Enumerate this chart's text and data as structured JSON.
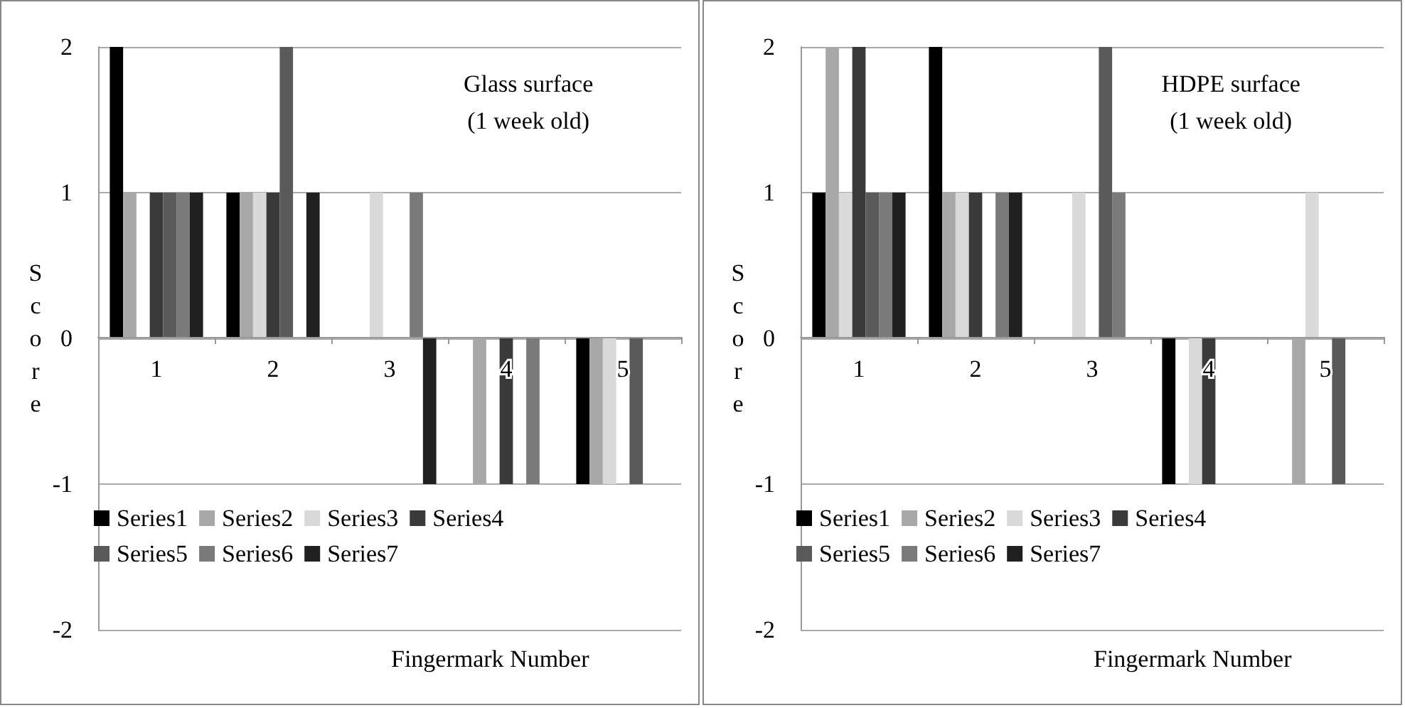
{
  "chart_data": [
    {
      "type": "bar",
      "title": "Glass surface\n(1 week old)",
      "xlabel": "Fingermark Number",
      "ylabel": "Score",
      "categories": [
        "1",
        "2",
        "3",
        "4",
        "5"
      ],
      "series": [
        {
          "name": "Series1",
          "color": "#000000",
          "values": [
            2,
            1,
            0,
            0,
            -1
          ]
        },
        {
          "name": "Series2",
          "color": "#a8a8a8",
          "values": [
            1,
            1,
            0,
            -1,
            -1
          ]
        },
        {
          "name": "Series3",
          "color": "#d9d9d9",
          "values": [
            0,
            1,
            1,
            0,
            -1
          ]
        },
        {
          "name": "Series4",
          "color": "#3a3a3a",
          "values": [
            1,
            1,
            0,
            -1,
            0
          ]
        },
        {
          "name": "Series5",
          "color": "#5a5a5a",
          "values": [
            1,
            2,
            0,
            0,
            -1
          ]
        },
        {
          "name": "Series6",
          "color": "#7a7a7a",
          "values": [
            1,
            0,
            1,
            -1,
            0
          ]
        },
        {
          "name": "Series7",
          "color": "#202020",
          "values": [
            1,
            1,
            -1,
            0,
            0
          ]
        }
      ],
      "ylim": [
        -2,
        2
      ],
      "yticks": [
        -2,
        -1,
        0,
        1,
        2
      ],
      "grid": "y",
      "legend": "bottom"
    },
    {
      "type": "bar",
      "title": "HDPE surface\n(1 week old)",
      "xlabel": "Fingermark Number",
      "ylabel": "Score",
      "categories": [
        "1",
        "2",
        "3",
        "4",
        "5"
      ],
      "series": [
        {
          "name": "Series1",
          "color": "#000000",
          "values": [
            1,
            2,
            0,
            -1,
            0
          ]
        },
        {
          "name": "Series2",
          "color": "#a8a8a8",
          "values": [
            2,
            1,
            0,
            0,
            -1
          ]
        },
        {
          "name": "Series3",
          "color": "#d9d9d9",
          "values": [
            1,
            1,
            1,
            -1,
            1
          ]
        },
        {
          "name": "Series4",
          "color": "#3a3a3a",
          "values": [
            2,
            1,
            0,
            -1,
            0
          ]
        },
        {
          "name": "Series5",
          "color": "#5a5a5a",
          "values": [
            1,
            0,
            2,
            0,
            -1
          ]
        },
        {
          "name": "Series6",
          "color": "#7a7a7a",
          "values": [
            1,
            1,
            1,
            0,
            0
          ]
        },
        {
          "name": "Series7",
          "color": "#202020",
          "values": [
            1,
            1,
            0,
            0,
            0
          ]
        }
      ],
      "ylim": [
        -2,
        2
      ],
      "yticks": [
        -2,
        -1,
        0,
        1,
        2
      ],
      "grid": "y",
      "legend": "bottom"
    }
  ]
}
